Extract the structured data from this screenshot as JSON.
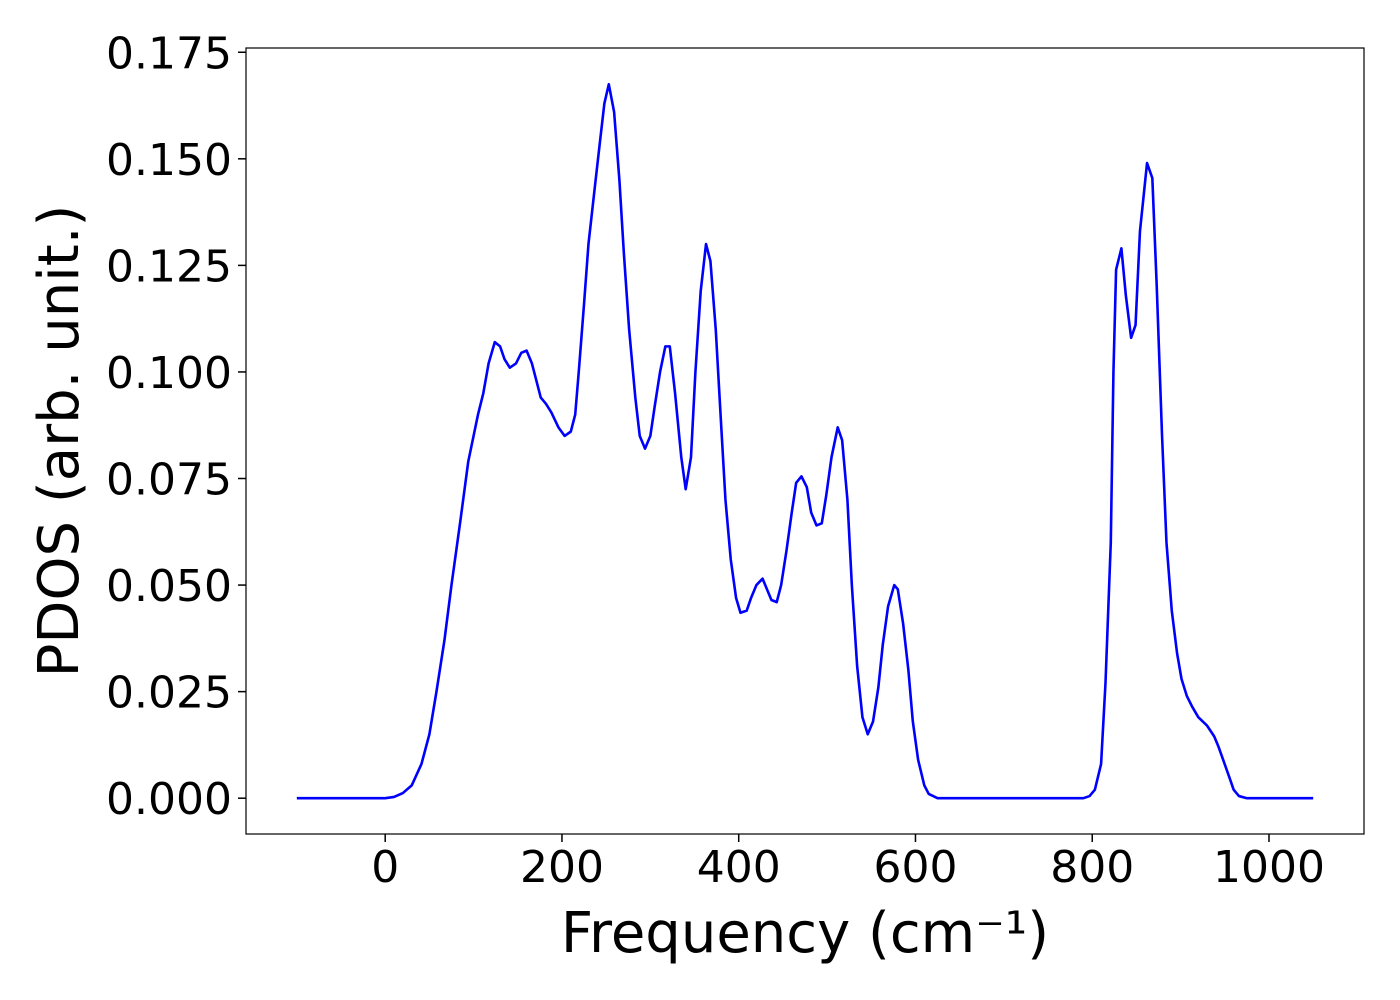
{
  "chart_data": {
    "type": "line",
    "xlabel": "Frequency (cm⁻¹)",
    "ylabel": "PDOS (arb. unit.)",
    "color": "#0000ff",
    "x": [
      -100,
      0,
      10,
      20,
      30,
      41,
      50,
      58,
      67,
      75,
      85,
      94,
      100,
      105,
      111,
      117,
      124,
      130,
      135,
      141,
      148,
      154,
      160,
      166,
      171,
      176,
      182,
      188,
      196,
      203,
      210,
      215,
      219,
      225,
      230,
      237,
      243,
      248,
      253,
      259,
      265,
      270,
      276,
      283,
      288,
      294,
      300,
      305,
      311,
      317,
      322,
      328,
      335,
      340,
      346,
      351,
      357,
      363,
      368,
      374,
      380,
      385,
      391,
      397,
      402,
      409,
      414,
      420,
      427,
      432,
      437,
      443,
      448,
      454,
      460,
      465,
      471,
      477,
      482,
      488,
      494,
      499,
      505,
      512,
      517,
      523,
      528,
      534,
      540,
      546,
      552,
      558,
      563,
      569,
      576,
      580,
      586,
      592,
      597,
      603,
      610,
      615,
      625,
      790,
      797,
      803,
      810,
      815,
      821,
      824,
      827,
      833,
      838,
      844,
      849,
      854,
      862,
      868,
      873,
      879,
      884,
      890,
      896,
      901,
      907,
      913,
      920,
      930,
      938,
      943,
      949,
      955,
      960,
      966,
      975,
      1050
    ],
    "values": [
      0,
      0,
      0.0003,
      0.0012,
      0.003,
      0.008,
      0.015,
      0.025,
      0.037,
      0.05,
      0.065,
      0.079,
      0.085,
      0.09,
      0.095,
      0.102,
      0.107,
      0.106,
      0.103,
      0.101,
      0.102,
      0.1045,
      0.105,
      0.102,
      0.098,
      0.094,
      0.0925,
      0.0905,
      0.087,
      0.085,
      0.086,
      0.09,
      0.1,
      0.116,
      0.13,
      0.143,
      0.154,
      0.163,
      0.1675,
      0.161,
      0.145,
      0.128,
      0.11,
      0.094,
      0.085,
      0.082,
      0.085,
      0.092,
      0.1,
      0.106,
      0.106,
      0.095,
      0.08,
      0.0725,
      0.08,
      0.1,
      0.119,
      0.13,
      0.126,
      0.11,
      0.088,
      0.07,
      0.056,
      0.047,
      0.0435,
      0.044,
      0.047,
      0.05,
      0.0515,
      0.049,
      0.0465,
      0.046,
      0.05,
      0.058,
      0.067,
      0.074,
      0.0755,
      0.073,
      0.067,
      0.064,
      0.0645,
      0.071,
      0.08,
      0.087,
      0.084,
      0.07,
      0.05,
      0.031,
      0.019,
      0.015,
      0.018,
      0.026,
      0.036,
      0.045,
      0.05,
      0.049,
      0.041,
      0.03,
      0.018,
      0.009,
      0.003,
      0.001,
      0,
      0,
      0.0005,
      0.002,
      0.008,
      0.027,
      0.06,
      0.1,
      0.124,
      0.129,
      0.118,
      0.108,
      0.111,
      0.133,
      0.149,
      0.1455,
      0.12,
      0.085,
      0.06,
      0.044,
      0.034,
      0.028,
      0.024,
      0.0215,
      0.019,
      0.017,
      0.0145,
      0.012,
      0.0085,
      0.005,
      0.002,
      0.0005,
      0,
      0
    ],
    "xlim": [
      -157.5,
      1107.5
    ],
    "ylim": [
      -0.0084,
      0.176
    ],
    "xticks": [
      0,
      200,
      400,
      600,
      800,
      1000
    ],
    "yticks": [
      {
        "value": 0,
        "label": "0.000"
      },
      {
        "value": 0.025,
        "label": "0.025"
      },
      {
        "value": 0.05,
        "label": "0.050"
      },
      {
        "value": 0.075,
        "label": "0.075"
      },
      {
        "value": 0.1,
        "label": "0.100"
      },
      {
        "value": 0.125,
        "label": "0.125"
      },
      {
        "value": 0.15,
        "label": "0.150"
      },
      {
        "value": 0.175,
        "label": "0.175"
      }
    ],
    "grid": false
  }
}
